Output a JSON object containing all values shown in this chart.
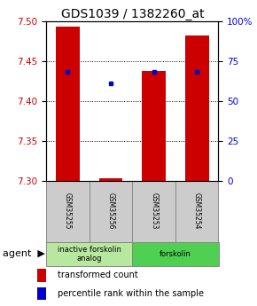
{
  "title": "GDS1039 / 1382260_at",
  "samples": [
    "GSM35255",
    "GSM35256",
    "GSM35253",
    "GSM35254"
  ],
  "red_values": [
    7.493,
    7.303,
    7.438,
    7.482
  ],
  "blue_values": [
    7.437,
    7.422,
    7.437,
    7.437
  ],
  "ylim_left": [
    7.3,
    7.5
  ],
  "yticks_left": [
    7.3,
    7.35,
    7.4,
    7.45,
    7.5
  ],
  "yticks_right": [
    0,
    25,
    50,
    75,
    100
  ],
  "agent_groups": [
    {
      "label": "inactive forskolin\nanalog",
      "span": [
        0,
        2
      ],
      "color": "#b8e8a0"
    },
    {
      "label": "forskolin",
      "span": [
        2,
        4
      ],
      "color": "#50d050"
    }
  ],
  "bar_width": 0.55,
  "red_color": "#cc0000",
  "blue_color": "#0000cc",
  "title_fontsize": 10,
  "tick_fontsize": 7.5,
  "sample_bg_color": "#cccccc",
  "sample_border_color": "#888888"
}
